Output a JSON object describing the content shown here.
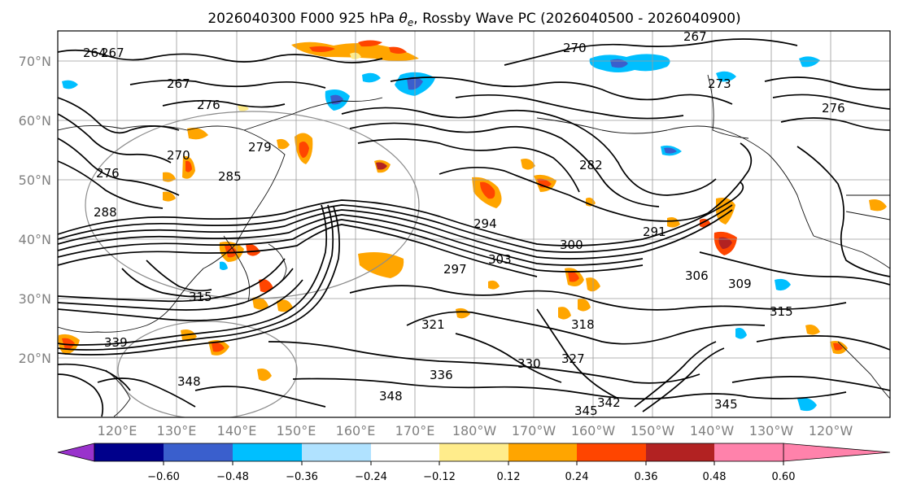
{
  "title_main": "2026040300 F000 925 hPa ",
  "title_var": "θ",
  "title_sub": "e",
  "title_tail": ", Rossby Wave PC (2026040500 - 2026040900)",
  "lat_labels": [
    "70°N",
    "60°N",
    "50°N",
    "40°N",
    "30°N",
    "20°N"
  ],
  "lon_labels": [
    "120°E",
    "130°E",
    "140°E",
    "150°E",
    "160°E",
    "170°E",
    "180°W",
    "170°W",
    "160°W",
    "150°W",
    "140°W",
    "130°W",
    "120°W"
  ],
  "colorbar": {
    "colors": [
      "#9932cc",
      "#00008b",
      "#3a5fcd",
      "#00bfff",
      "#b0e2ff",
      "#ffffff",
      "#ffec8b",
      "#ffa500",
      "#ff4500",
      "#b22222",
      "#ff82ab"
    ],
    "tick_labels": [
      "−0.60",
      "−0.48",
      "−0.36",
      "−0.24",
      "−0.12",
      "0.12",
      "0.24",
      "0.36",
      "0.48",
      "0.60"
    ]
  },
  "contour_labels": {
    "c264": "264",
    "c267a": "267",
    "c267b": "267",
    "c267c": "267",
    "c270a": "270",
    "c270b": "270",
    "c273": "273",
    "c276a": "276",
    "c276b": "276",
    "c276c": "276",
    "c279": "279",
    "c282": "282",
    "c285": "285",
    "c288": "288",
    "c291": "291",
    "c294": "294",
    "c297": "297",
    "c300": "300",
    "c303": "303",
    "c306": "306",
    "c309": "309",
    "c315a": "315",
    "c315b": "315",
    "c318": "318",
    "c321": "321",
    "c327": "327",
    "c330": "330",
    "c336": "336",
    "c342": "342",
    "c345a": "345",
    "c345b": "345",
    "c348a": "348",
    "c348b": "348",
    "c339": "339"
  }
}
